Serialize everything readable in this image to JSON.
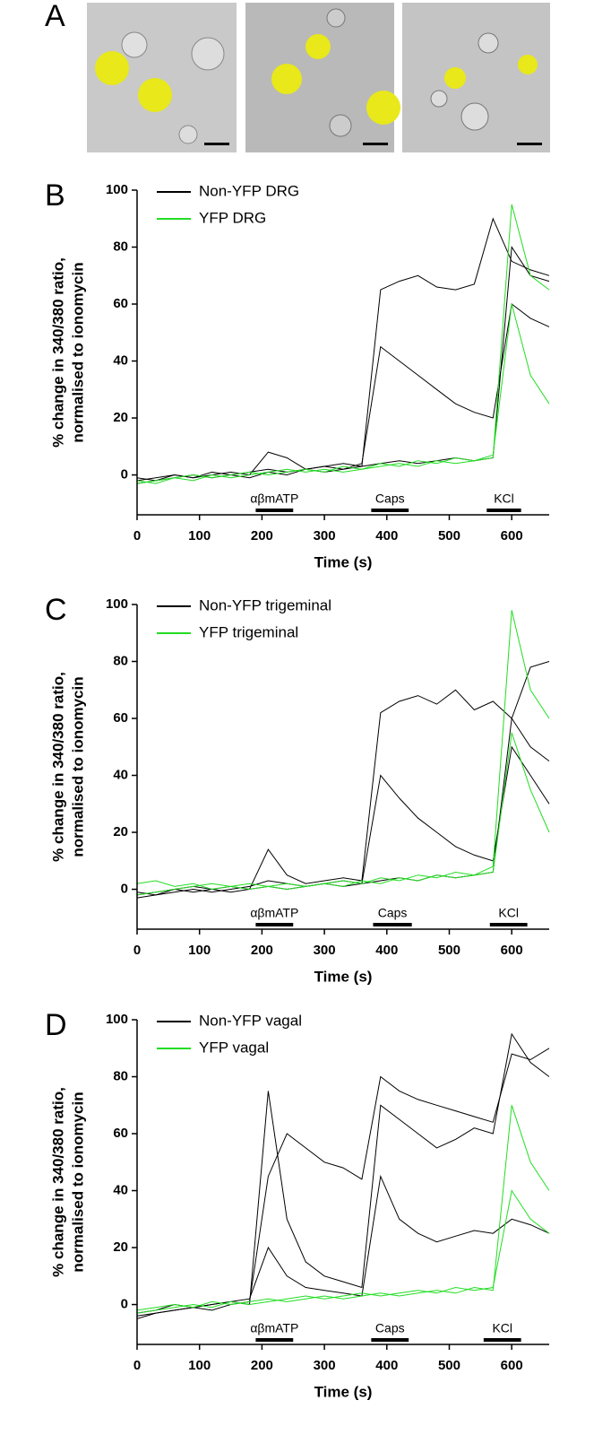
{
  "images": {
    "label": "A"
  },
  "chart_data": [
    {
      "type": "line",
      "panel_label": "B",
      "ylabel": [
        "% change in 340/380 ratio,",
        "normalised to ionomycin"
      ],
      "xlabel": "Time (s)",
      "x": [
        0,
        30,
        60,
        90,
        120,
        150,
        180,
        210,
        240,
        270,
        300,
        330,
        360,
        390,
        420,
        450,
        480,
        510,
        540,
        570,
        600,
        630,
        660
      ],
      "series": [
        {
          "name": "Non-YFP DRG",
          "color": "#000000",
          "traces": [
            [
              -2,
              -1,
              0,
              -1,
              0,
              1,
              0,
              8,
              6,
              2,
              3,
              4,
              3,
              65,
              68,
              70,
              66,
              65,
              67,
              90,
              75,
              72,
              70
            ],
            [
              -3,
              -2,
              -1,
              0,
              -1,
              0,
              1,
              2,
              1,
              2,
              3,
              2,
              4,
              45,
              40,
              35,
              30,
              25,
              22,
              20,
              60,
              55,
              52
            ],
            [
              -1,
              -2,
              0,
              -1,
              1,
              0,
              -1,
              1,
              0,
              2,
              1,
              2,
              3,
              4,
              5,
              4,
              5,
              6,
              5,
              6,
              80,
              70,
              68
            ]
          ]
        },
        {
          "name": "YFP DRG",
          "color": "#22dd22",
          "traces": [
            [
              -3,
              -2,
              -1,
              -2,
              0,
              -1,
              0,
              1,
              2,
              1,
              2,
              1,
              2,
              3,
              4,
              3,
              5,
              4,
              5,
              6,
              95,
              70,
              65
            ],
            [
              -2,
              -3,
              -1,
              0,
              -1,
              0,
              1,
              0,
              1,
              2,
              1,
              3,
              2,
              4,
              3,
              5,
              4,
              6,
              5,
              7,
              60,
              35,
              25
            ]
          ]
        }
      ],
      "xlim": [
        0,
        660
      ],
      "ylim": [
        -14,
        100
      ],
      "xticks": [
        0,
        100,
        200,
        300,
        400,
        500,
        600
      ],
      "yticks": [
        0,
        20,
        40,
        60,
        80,
        100
      ],
      "annotations": [
        {
          "label": "αβmATP",
          "x": [
            190,
            250
          ]
        },
        {
          "label": "Caps",
          "x": [
            375,
            435
          ]
        },
        {
          "label": "KCl",
          "x": [
            560,
            615
          ]
        }
      ]
    },
    {
      "type": "line",
      "panel_label": "C",
      "ylabel": [
        "% change in 340/380 ratio,",
        "normalised to ionomycin"
      ],
      "xlabel": "Time (s)",
      "x": [
        0,
        30,
        60,
        90,
        120,
        150,
        180,
        210,
        240,
        270,
        300,
        330,
        360,
        390,
        420,
        450,
        480,
        510,
        540,
        570,
        600,
        630,
        660
      ],
      "series": [
        {
          "name": "Non-YFP trigeminal",
          "color": "#000000",
          "traces": [
            [
              -2,
              -1,
              0,
              -1,
              0,
              1,
              0,
              14,
              5,
              2,
              3,
              4,
              3,
              62,
              66,
              68,
              65,
              70,
              63,
              66,
              60,
              78,
              80
            ],
            [
              -3,
              -2,
              -1,
              0,
              -1,
              0,
              1,
              3,
              2,
              1,
              2,
              3,
              2,
              40,
              32,
              25,
              20,
              15,
              12,
              10,
              50,
              40,
              30
            ],
            [
              -1,
              -2,
              0,
              1,
              0,
              -1,
              0,
              1,
              0,
              1,
              2,
              1,
              2,
              3,
              4,
              3,
              5,
              4,
              5,
              6,
              60,
              50,
              45
            ]
          ]
        },
        {
          "name": "YFP trigeminal",
          "color": "#22dd22",
          "traces": [
            [
              2,
              3,
              1,
              2,
              0,
              1,
              2,
              1,
              0,
              1,
              2,
              3,
              2,
              4,
              3,
              5,
              4,
              6,
              5,
              8,
              98,
              70,
              60
            ],
            [
              -2,
              -1,
              0,
              1,
              2,
              1,
              0,
              1,
              2,
              1,
              2,
              1,
              3,
              2,
              4,
              3,
              5,
              4,
              5,
              6,
              55,
              35,
              20
            ]
          ]
        }
      ],
      "xlim": [
        0,
        660
      ],
      "ylim": [
        -14,
        100
      ],
      "xticks": [
        0,
        100,
        200,
        300,
        400,
        500,
        600
      ],
      "yticks": [
        0,
        20,
        40,
        60,
        80,
        100
      ],
      "annotations": [
        {
          "label": "αβmATP",
          "x": [
            190,
            250
          ]
        },
        {
          "label": "Caps",
          "x": [
            378,
            440
          ]
        },
        {
          "label": "KCl",
          "x": [
            565,
            625
          ]
        }
      ]
    },
    {
      "type": "line",
      "panel_label": "D",
      "ylabel": [
        "% change in 340/380 ratio,",
        "normalised to ionomycin"
      ],
      "xlabel": "Time (s)",
      "x": [
        0,
        30,
        60,
        90,
        120,
        150,
        180,
        210,
        240,
        270,
        300,
        330,
        360,
        390,
        420,
        450,
        480,
        510,
        540,
        570,
        600,
        630,
        660
      ],
      "series": [
        {
          "name": "Non-YFP vagal",
          "color": "#000000",
          "traces": [
            [
              -5,
              -3,
              -2,
              -1,
              0,
              1,
              0,
              75,
              30,
              15,
              10,
              8,
              6,
              70,
              65,
              60,
              55,
              58,
              62,
              60,
              95,
              85,
              80
            ],
            [
              -4,
              -3,
              -2,
              -1,
              -2,
              0,
              1,
              45,
              60,
              55,
              50,
              48,
              44,
              80,
              75,
              72,
              70,
              68,
              66,
              64,
              88,
              86,
              90
            ],
            [
              -3,
              -2,
              0,
              -1,
              0,
              1,
              2,
              20,
              10,
              6,
              5,
              4,
              3,
              45,
              30,
              25,
              22,
              24,
              26,
              25,
              30,
              28,
              25
            ]
          ]
        },
        {
          "name": "YFP vagal",
          "color": "#22dd22",
          "traces": [
            [
              -2,
              -1,
              0,
              -1,
              1,
              0,
              1,
              2,
              1,
              2,
              3,
              2,
              3,
              4,
              3,
              4,
              5,
              4,
              6,
              5,
              70,
              50,
              40
            ],
            [
              -3,
              -2,
              -1,
              0,
              -1,
              1,
              0,
              1,
              2,
              3,
              2,
              3,
              4,
              3,
              4,
              5,
              4,
              6,
              5,
              6,
              40,
              30,
              25
            ]
          ]
        }
      ],
      "xlim": [
        0,
        660
      ],
      "ylim": [
        -14,
        100
      ],
      "xticks": [
        0,
        100,
        200,
        300,
        400,
        500,
        600
      ],
      "yticks": [
        0,
        20,
        40,
        60,
        80,
        100
      ],
      "annotations": [
        {
          "label": "αβmATP",
          "x": [
            190,
            250
          ]
        },
        {
          "label": "Caps",
          "x": [
            375,
            435
          ]
        },
        {
          "label": "KCl",
          "x": [
            555,
            615
          ]
        }
      ]
    }
  ]
}
